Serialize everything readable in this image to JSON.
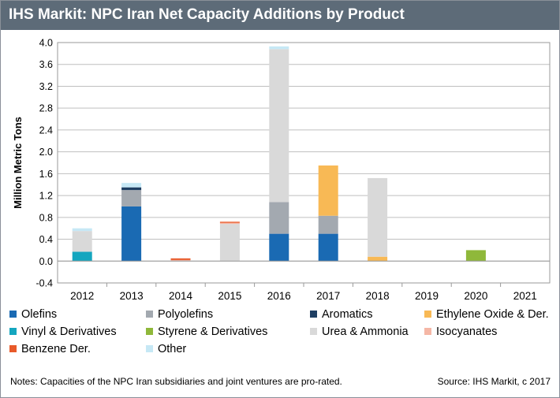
{
  "title": "IHS Markit: NPC Iran Net Capacity Additions by Product",
  "notes": "Notes: Capacities of the NPC Iran subsidiaries and joint ventures are pro-rated.",
  "source": "Source: IHS Markit, c 2017",
  "chart_data": {
    "type": "bar",
    "stacked": true,
    "ylabel": "Million Metric Tons",
    "ylim": [
      -0.4,
      4.0
    ],
    "yticks": [
      "-0.4",
      "0.0",
      "0.4",
      "0.8",
      "1.2",
      "1.6",
      "2.0",
      "2.4",
      "2.8",
      "3.2",
      "3.6",
      "4.0"
    ],
    "grid": true,
    "legend_position": "bottom",
    "categories": [
      "2012",
      "2013",
      "2014",
      "2015",
      "2016",
      "2017",
      "2018",
      "2019",
      "2020",
      "2021"
    ],
    "series": [
      {
        "name": "Olefins",
        "color": "#1a6ab3",
        "values": [
          0,
          1.0,
          0,
          0,
          0.5,
          0.5,
          0,
          0,
          0,
          0
        ]
      },
      {
        "name": "Polyolefins",
        "color": "#a3a9b0",
        "values": [
          0,
          0.3,
          0,
          0,
          0.58,
          0.33,
          0,
          0,
          0,
          0
        ]
      },
      {
        "name": "Aromatics",
        "color": "#1f3f63",
        "values": [
          0,
          0.05,
          0,
          0,
          0,
          0,
          0,
          0,
          0,
          0
        ]
      },
      {
        "name": "Ethylene Oxide & Der.",
        "color": "#f8b955",
        "values": [
          0,
          0,
          0,
          0,
          0,
          0.92,
          0.08,
          0,
          0,
          0
        ]
      },
      {
        "name": "Vinyl & Derivatives",
        "color": "#14a6bf",
        "values": [
          0.17,
          0,
          0,
          0,
          0,
          0,
          0,
          0,
          0,
          0
        ]
      },
      {
        "name": "Styrene & Derivatives",
        "color": "#8fb83a",
        "values": [
          0,
          0,
          0,
          0,
          0,
          0,
          0,
          0,
          0.2,
          0
        ]
      },
      {
        "name": "Urea & Ammonia",
        "color": "#d9d9d9",
        "values": [
          0.38,
          0,
          0,
          0.68,
          2.8,
          0,
          1.44,
          0,
          0,
          0
        ]
      },
      {
        "name": "Isocyanates",
        "color": "#f5b7a6",
        "values": [
          0,
          0,
          0.02,
          0.02,
          0,
          0,
          0,
          0,
          0,
          0
        ]
      },
      {
        "name": "Benzene Der.",
        "color": "#e85a2a",
        "values": [
          0,
          0,
          0.03,
          0.02,
          0,
          0,
          0,
          0,
          0,
          0
        ]
      },
      {
        "name": "Other",
        "color": "#c6e8f5",
        "values": [
          0.05,
          0.08,
          0,
          0,
          0.05,
          0,
          0,
          0,
          0,
          0
        ]
      }
    ]
  }
}
